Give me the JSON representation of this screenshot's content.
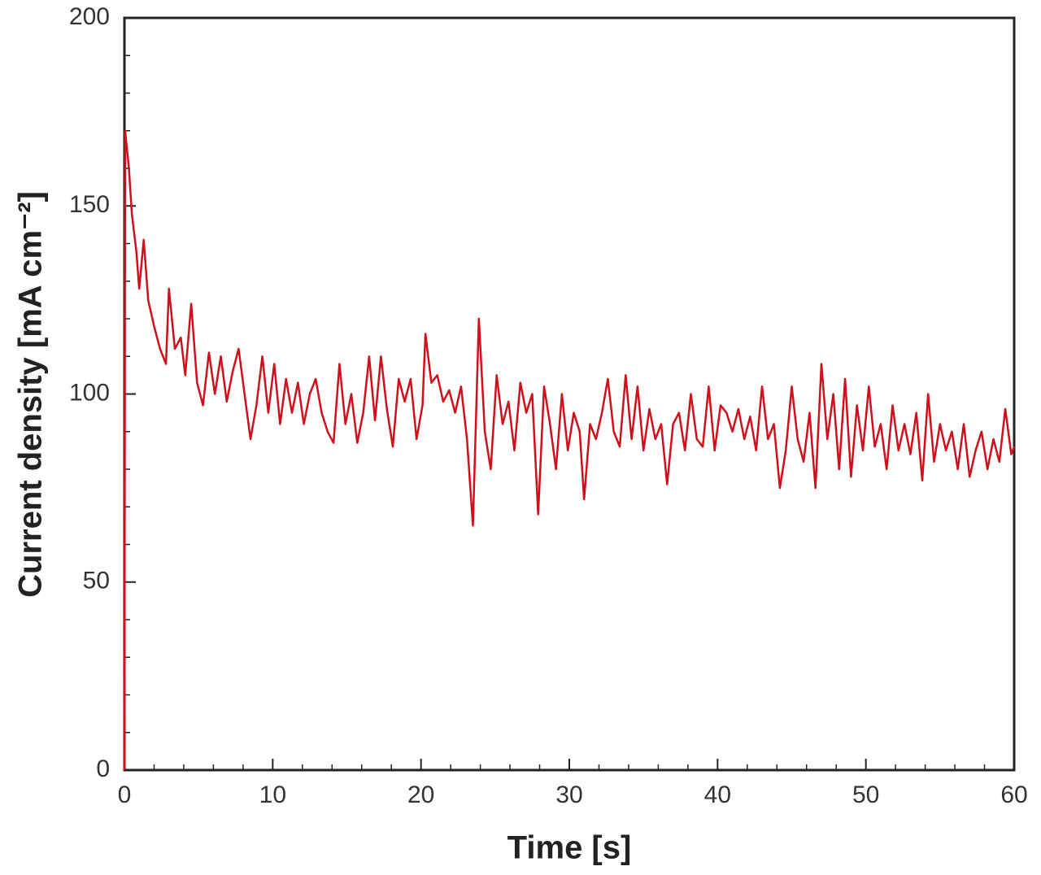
{
  "chart_data": {
    "type": "line",
    "xlabel": "Time [s]",
    "ylabel": "Current density [mA cm⁻²]",
    "xlim": [
      0,
      60
    ],
    "ylim": [
      0,
      200
    ],
    "xticks": [
      0,
      10,
      20,
      30,
      40,
      50,
      60
    ],
    "yticks": [
      0,
      50,
      100,
      150,
      200
    ],
    "xminor": [
      2,
      4,
      6,
      8,
      12,
      14,
      16,
      18,
      22,
      24,
      26,
      28,
      32,
      34,
      36,
      38,
      42,
      44,
      46,
      48,
      52,
      54,
      56,
      58
    ],
    "yminor": [
      10,
      20,
      30,
      40,
      60,
      70,
      80,
      90,
      110,
      120,
      130,
      140,
      160,
      170,
      180,
      190
    ],
    "x": [
      0,
      0.05,
      0.3,
      0.5,
      0.8,
      1,
      1.3,
      1.6,
      2,
      2.4,
      2.8,
      3,
      3.4,
      3.8,
      4.1,
      4.5,
      4.9,
      5.3,
      5.7,
      6.1,
      6.5,
      6.9,
      7.3,
      7.7,
      8.1,
      8.5,
      8.9,
      9.3,
      9.7,
      10.1,
      10.5,
      10.9,
      11.3,
      11.7,
      12.1,
      12.5,
      12.9,
      13.3,
      13.7,
      14.1,
      14.5,
      14.9,
      15.3,
      15.7,
      16.1,
      16.5,
      16.9,
      17.3,
      17.7,
      18.1,
      18.5,
      18.9,
      19.3,
      19.7,
      20.1,
      20.3,
      20.7,
      21.1,
      21.5,
      21.9,
      22.3,
      22.7,
      23.1,
      23.5,
      23.9,
      24.3,
      24.7,
      25.1,
      25.5,
      25.9,
      26.3,
      26.7,
      27.1,
      27.5,
      27.9,
      28.3,
      28.7,
      29.1,
      29.5,
      29.9,
      30.3,
      30.7,
      31,
      31.4,
      31.8,
      32.2,
      32.6,
      33,
      33.4,
      33.8,
      34.2,
      34.6,
      35,
      35.4,
      35.8,
      36.2,
      36.6,
      37,
      37.4,
      37.8,
      38.2,
      38.6,
      39,
      39.4,
      39.8,
      40.2,
      40.6,
      41,
      41.4,
      41.8,
      42.2,
      42.6,
      43,
      43.4,
      43.8,
      44.2,
      44.6,
      45,
      45.4,
      45.8,
      46.2,
      46.6,
      47,
      47.4,
      47.8,
      48.2,
      48.6,
      49,
      49.4,
      49.8,
      50.2,
      50.6,
      51,
      51.4,
      51.8,
      52.2,
      52.6,
      53,
      53.4,
      53.8,
      54.2,
      54.6,
      55,
      55.4,
      55.8,
      56.2,
      56.6,
      57,
      57.4,
      57.8,
      58.2,
      58.6,
      59,
      59.4,
      59.8,
      60
    ],
    "series": [
      {
        "color": "#d0101a",
        "values": [
          0,
          170,
          160,
          148,
          138,
          128,
          141,
          125,
          118,
          112,
          108,
          128,
          112,
          115,
          105,
          124,
          103,
          97,
          111,
          100,
          110,
          98,
          106,
          112,
          100,
          88,
          97,
          110,
          95,
          108,
          92,
          104,
          95,
          103,
          92,
          100,
          104,
          95,
          90,
          87,
          108,
          92,
          100,
          87,
          95,
          110,
          93,
          110,
          96,
          86,
          104,
          98,
          104,
          88,
          97,
          116,
          103,
          105,
          98,
          101,
          95,
          102,
          88,
          65,
          120,
          90,
          80,
          105,
          92,
          98,
          85,
          103,
          95,
          100,
          68,
          102,
          92,
          80,
          100,
          85,
          95,
          90,
          72,
          92,
          88,
          95,
          104,
          90,
          86,
          105,
          88,
          102,
          85,
          96,
          88,
          92,
          76,
          92,
          95,
          85,
          100,
          88,
          86,
          102,
          85,
          97,
          95,
          90,
          96,
          88,
          94,
          85,
          102,
          88,
          92,
          75,
          85,
          102,
          88,
          82,
          95,
          75,
          108,
          88,
          100,
          80,
          104,
          78,
          97,
          85,
          102,
          86,
          92,
          80,
          97,
          85,
          92,
          84,
          95,
          77,
          100,
          82,
          92,
          85,
          90,
          80,
          92,
          78,
          85,
          90,
          80,
          88,
          82,
          96,
          84,
          86
        ]
      }
    ]
  }
}
